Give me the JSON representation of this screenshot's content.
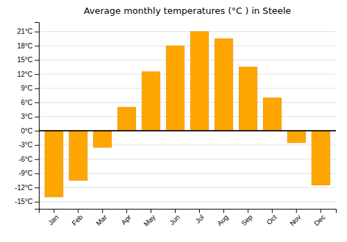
{
  "chart_data": {
    "type": "bar",
    "title": "Average monthly temperatures (°C ) in Steele",
    "categories": [
      "Jan",
      "Feb",
      "Mar",
      "Apr",
      "May",
      "Jun",
      "Jul",
      "Aug",
      "Sep",
      "Oct",
      "Nov",
      "Dec"
    ],
    "values": [
      -14,
      -10.5,
      -3.5,
      5,
      12.5,
      18,
      21,
      19.5,
      13.5,
      7,
      -2.5,
      -11.5
    ],
    "color": "#FFA500",
    "ylim": [
      -16.5,
      23
    ],
    "yticks": [
      {
        "value": -15,
        "label": "-15°C"
      },
      {
        "value": -12,
        "label": "-12°C"
      },
      {
        "value": -9,
        "label": "-9°C"
      },
      {
        "value": -6,
        "label": "-6°C"
      },
      {
        "value": -3,
        "label": "-3°C"
      },
      {
        "value": 0,
        "label": "0°C"
      },
      {
        "value": 3,
        "label": "3°C"
      },
      {
        "value": 6,
        "label": "6°C"
      },
      {
        "value": 9,
        "label": "9°C"
      },
      {
        "value": 12,
        "label": "12°C"
      },
      {
        "value": 15,
        "label": "15°C"
      },
      {
        "value": 18,
        "label": "18°C"
      },
      {
        "value": 21,
        "label": "21°C"
      }
    ],
    "grid": true
  }
}
